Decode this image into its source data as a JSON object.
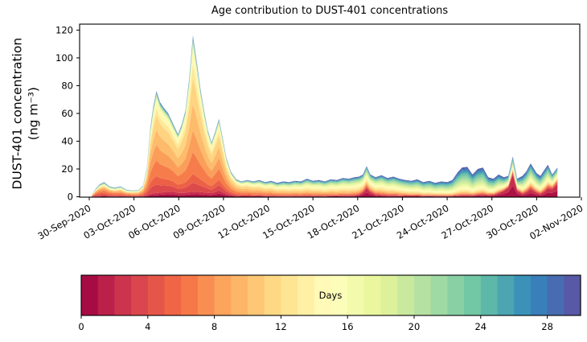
{
  "chart_data": {
    "type": "area",
    "stacked": true,
    "title": "Age contribution to DUST-401 concentrations",
    "ylabel": "DUST-401 concentration",
    "ylabel_units": "(ng m⁻³)",
    "x_axis": {
      "tick_labels": [
        "30-Sep-2020",
        "03-Oct-2020",
        "06-Oct-2020",
        "09-Oct-2020",
        "12-Oct-2020",
        "15-Oct-2020",
        "18-Oct-2020",
        "21-Oct-2020",
        "24-Oct-2020",
        "27-Oct-2020",
        "30-Oct-2020",
        "02-Nov-2020"
      ],
      "tick_day_offsets": [
        0,
        3,
        6,
        9,
        12,
        15,
        18,
        21,
        24,
        27,
        30,
        33
      ],
      "label_rotation_deg": 30
    },
    "y_axis": {
      "ticks": [
        0,
        20,
        40,
        60,
        80,
        100,
        120
      ],
      "lim": [
        0,
        124
      ]
    },
    "time_unit": "days since 30-Sep-2020",
    "t": [
      0.15,
      0.45,
      0.7,
      1.0,
      1.35,
      1.7,
      2.1,
      2.5,
      2.9,
      3.3,
      3.6,
      3.85,
      4.1,
      4.3,
      4.5,
      4.75,
      5.0,
      5.3,
      5.6,
      5.95,
      6.2,
      6.45,
      6.7,
      6.95,
      7.2,
      7.45,
      7.7,
      7.95,
      8.2,
      8.45,
      8.7,
      8.95,
      9.2,
      9.5,
      9.85,
      10.2,
      10.6,
      11.0,
      11.4,
      11.8,
      12.2,
      12.6,
      13.0,
      13.4,
      13.8,
      14.2,
      14.6,
      15.0,
      15.4,
      15.8,
      16.2,
      16.6,
      17.0,
      17.4,
      17.8,
      18.1,
      18.35,
      18.6,
      18.85,
      19.2,
      19.6,
      20.0,
      20.4,
      20.8,
      21.2,
      21.6,
      22.0,
      22.4,
      22.8,
      23.2,
      23.6,
      24.0,
      24.35,
      24.7,
      25.0,
      25.35,
      25.7,
      26.05,
      26.4,
      26.75,
      27.1,
      27.45,
      27.8,
      28.1,
      28.4,
      28.7,
      29.05,
      29.3,
      29.6,
      30.0,
      30.25,
      30.5,
      30.75,
      31.05,
      31.4
    ],
    "total": [
      1,
      6,
      9,
      10.5,
      7.5,
      6.5,
      7.5,
      5,
      4.5,
      4.7,
      8,
      20,
      50,
      65,
      76,
      68,
      64,
      60,
      53,
      45,
      52,
      62,
      85,
      116,
      98,
      78,
      62,
      48,
      39,
      47,
      56,
      42,
      28,
      18,
      12.5,
      11,
      12,
      11,
      12,
      10.5,
      11.5,
      10,
      11,
      10.5,
      11.5,
      11,
      13,
      11.5,
      12,
      11,
      12.5,
      12,
      13.5,
      13,
      14,
      14.5,
      16,
      22,
      16,
      14,
      15.5,
      13.5,
      14.5,
      13,
      12,
      11.5,
      12.5,
      10.5,
      11.5,
      10,
      11,
      10.5,
      12,
      17.5,
      21,
      21.5,
      16,
      20,
      21,
      14,
      13,
      16,
      14,
      15,
      29,
      13,
      15,
      18,
      24,
      17,
      15,
      19,
      23,
      16,
      21
    ],
    "age_band_edges_days": [
      0,
      3,
      6,
      9,
      12,
      15,
      18,
      21,
      24,
      27,
      30
    ],
    "age_profiles": [
      {
        "t": 0.0,
        "fractions": [
          0.05,
          0.28,
          0.28,
          0.13,
          0.07,
          0.05,
          0.04,
          0.04,
          0.03,
          0.03
        ]
      },
      {
        "t": 2.5,
        "fractions": [
          0.06,
          0.18,
          0.24,
          0.18,
          0.1,
          0.07,
          0.06,
          0.05,
          0.03,
          0.03
        ]
      },
      {
        "t": 4.5,
        "fractions": [
          0.035,
          0.16,
          0.3,
          0.28,
          0.12,
          0.045,
          0.02,
          0.015,
          0.013,
          0.012
        ]
      },
      {
        "t": 5.6,
        "fractions": [
          0.07,
          0.14,
          0.28,
          0.28,
          0.13,
          0.04,
          0.02,
          0.015,
          0.013,
          0.012
        ]
      },
      {
        "t": 7.0,
        "fractions": [
          0.03,
          0.11,
          0.27,
          0.33,
          0.16,
          0.04,
          0.02,
          0.015,
          0.013,
          0.012
        ]
      },
      {
        "t": 8.7,
        "fractions": [
          0.08,
          0.14,
          0.28,
          0.28,
          0.12,
          0.04,
          0.02,
          0.015,
          0.013,
          0.012
        ]
      },
      {
        "t": 10.5,
        "fractions": [
          0.05,
          0.1,
          0.21,
          0.25,
          0.16,
          0.08,
          0.05,
          0.04,
          0.03,
          0.03
        ]
      },
      {
        "t": 13.0,
        "fractions": [
          0.04,
          0.07,
          0.13,
          0.19,
          0.17,
          0.13,
          0.09,
          0.07,
          0.05,
          0.06
        ]
      },
      {
        "t": 16.0,
        "fractions": [
          0.04,
          0.06,
          0.11,
          0.15,
          0.18,
          0.16,
          0.11,
          0.08,
          0.055,
          0.055
        ]
      },
      {
        "t": 18.0,
        "fractions": [
          0.06,
          0.06,
          0.09,
          0.13,
          0.17,
          0.16,
          0.12,
          0.09,
          0.06,
          0.06
        ]
      },
      {
        "t": 18.6,
        "fractions": [
          0.27,
          0.08,
          0.07,
          0.09,
          0.12,
          0.12,
          0.09,
          0.07,
          0.05,
          0.04
        ]
      },
      {
        "t": 19.3,
        "fractions": [
          0.07,
          0.07,
          0.09,
          0.12,
          0.16,
          0.16,
          0.12,
          0.09,
          0.06,
          0.06
        ]
      },
      {
        "t": 21.0,
        "fractions": [
          0.05,
          0.05,
          0.07,
          0.1,
          0.14,
          0.17,
          0.15,
          0.12,
          0.08,
          0.07
        ]
      },
      {
        "t": 23.5,
        "fractions": [
          0.045,
          0.04,
          0.05,
          0.07,
          0.11,
          0.16,
          0.17,
          0.15,
          0.11,
          0.095
        ]
      },
      {
        "t": 25.3,
        "fractions": [
          0.04,
          0.035,
          0.04,
          0.06,
          0.1,
          0.14,
          0.17,
          0.17,
          0.13,
          0.115
        ]
      },
      {
        "t": 27.3,
        "fractions": [
          0.09,
          0.05,
          0.05,
          0.06,
          0.1,
          0.13,
          0.15,
          0.14,
          0.12,
          0.11
        ]
      },
      {
        "t": 28.4,
        "fractions": [
          0.55,
          0.07,
          0.03,
          0.03,
          0.05,
          0.06,
          0.06,
          0.06,
          0.05,
          0.04
        ]
      },
      {
        "t": 29.0,
        "fractions": [
          0.12,
          0.06,
          0.05,
          0.06,
          0.1,
          0.12,
          0.14,
          0.13,
          0.11,
          0.11
        ]
      },
      {
        "t": 29.6,
        "fractions": [
          0.22,
          0.07,
          0.05,
          0.06,
          0.09,
          0.11,
          0.12,
          0.12,
          0.09,
          0.07
        ]
      },
      {
        "t": 30.3,
        "fractions": [
          0.12,
          0.06,
          0.05,
          0.06,
          0.1,
          0.12,
          0.14,
          0.13,
          0.11,
          0.11
        ]
      },
      {
        "t": 30.85,
        "fractions": [
          0.28,
          0.08,
          0.05,
          0.06,
          0.08,
          0.1,
          0.11,
          0.1,
          0.08,
          0.06
        ]
      },
      {
        "t": 31.4,
        "fractions": [
          0.42,
          0.1,
          0.05,
          0.05,
          0.07,
          0.08,
          0.08,
          0.07,
          0.045,
          0.035
        ]
      }
    ],
    "colorbar": {
      "label": "Days",
      "ticks": [
        0,
        4,
        8,
        12,
        16,
        20,
        24,
        28
      ],
      "min": 0,
      "max": 30,
      "segments": 30
    },
    "colors": {
      "spectral_anchors": [
        "#9e0142",
        "#d53e4f",
        "#f46d43",
        "#fdae61",
        "#fee08b",
        "#ffffbf",
        "#e6f598",
        "#abdda4",
        "#66c2a5",
        "#3288bd",
        "#5e4fa2"
      ],
      "axis": "#000000",
      "background": "#ffffff"
    }
  }
}
